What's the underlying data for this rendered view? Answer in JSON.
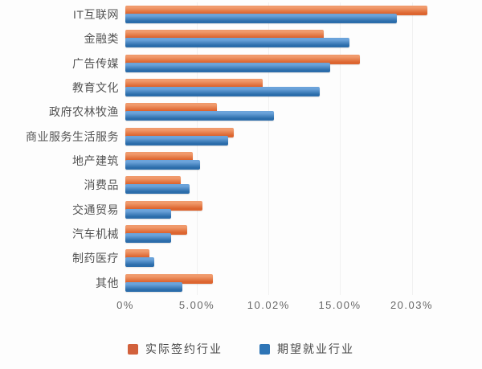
{
  "chart_data": {
    "type": "bar",
    "orientation": "horizontal",
    "title": "",
    "xlabel": "",
    "ylabel": "",
    "axis_max": 22.7,
    "grid": true,
    "legend_position": "bottom",
    "categories": [
      "IT互联网",
      "金融类",
      "广告传媒",
      "教育文化",
      "政府农林牧渔",
      "商业服务生活服务",
      "地产建筑",
      "消费品",
      "交通贸易",
      "汽车机械",
      "制药医疗",
      "其他"
    ],
    "series": [
      {
        "name": "实际签约行业",
        "color_top": "#F09A6C",
        "color_bottom": "#DD6530",
        "legend_color": "#D2613C",
        "values": [
          21.1,
          13.9,
          16.4,
          9.6,
          6.4,
          7.6,
          4.7,
          3.9,
          5.4,
          4.3,
          1.7,
          6.1
        ]
      },
      {
        "name": "期望就业行业",
        "color_top": "#6BA3DA",
        "color_bottom": "#2C6DAB",
        "legend_color": "#2E75B6",
        "values": [
          19.0,
          15.7,
          14.3,
          13.6,
          10.4,
          7.2,
          5.2,
          4.5,
          3.2,
          3.2,
          2.0,
          4.0
        ]
      }
    ],
    "x_ticks": [
      {
        "value": 0,
        "label": "0%"
      },
      {
        "value": 5,
        "label": "5.00%"
      },
      {
        "value": 10.02,
        "label": "10.02%"
      },
      {
        "value": 15,
        "label": "15.00%"
      },
      {
        "value": 20.03,
        "label": "20.03%"
      }
    ]
  }
}
